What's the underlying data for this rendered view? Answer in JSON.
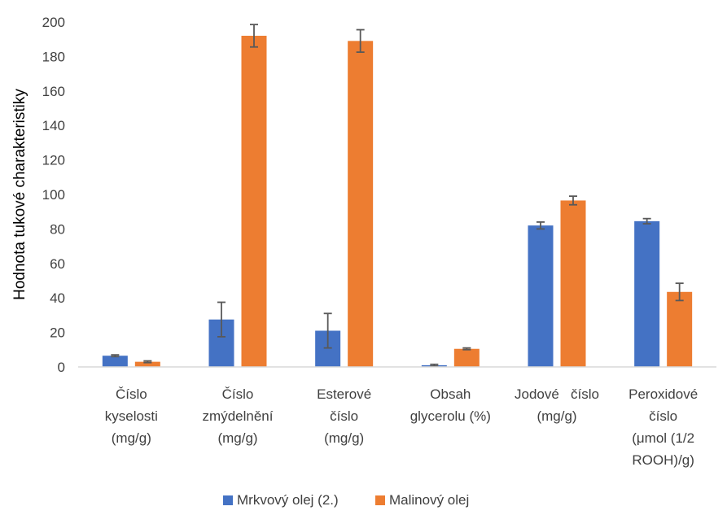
{
  "chart_data": {
    "type": "bar",
    "ylabel": "Hodnota tukové charakteristiky",
    "xlabel": "",
    "ylim": [
      0,
      200
    ],
    "yticks": [
      0,
      20,
      40,
      60,
      80,
      100,
      120,
      140,
      160,
      180,
      200
    ],
    "categories": [
      [
        "Číslo",
        "kyselosti",
        "(mg/g)"
      ],
      [
        "Číslo",
        "zmýdelnění",
        "(mg/g)"
      ],
      [
        "Esterové",
        "číslo",
        "(mg/g)"
      ],
      [
        "Obsah",
        "glycerolu (%)"
      ],
      [
        "Jodové   číslo",
        "(mg/g)"
      ],
      [
        "Peroxidové",
        "číslo",
        "(μmol (1/2",
        "ROOH)/g)"
      ]
    ],
    "series": [
      {
        "name": "Mrkvový olej (2.)",
        "color": "#4472C4",
        "values": [
          6.5,
          27.5,
          21,
          1,
          82,
          84.5
        ],
        "errors": [
          0.5,
          10,
          10,
          0.5,
          2,
          1.5
        ]
      },
      {
        "name": "Malinový olej",
        "color": "#ED7D31",
        "values": [
          3,
          192,
          189,
          10.5,
          96.5,
          43.5
        ],
        "errors": [
          0.5,
          6.5,
          6.5,
          0.5,
          2.5,
          5
        ]
      }
    ],
    "grid": false,
    "legend_position": "bottom"
  }
}
